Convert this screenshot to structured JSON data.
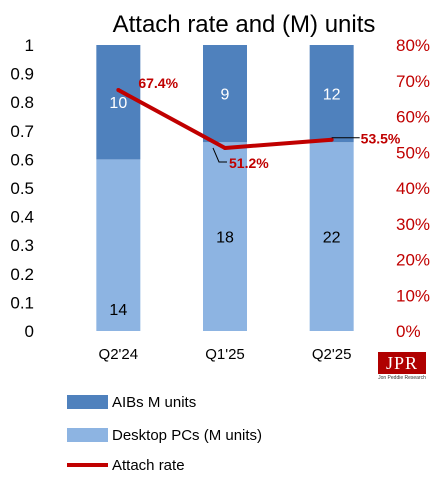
{
  "chart_data": {
    "type": "bar",
    "title": "Attach rate and (M) units",
    "categories": [
      "Q2'24",
      "Q1'25",
      "Q2'25"
    ],
    "series": [
      {
        "name": "Desktop PCs (M units)",
        "values": [
          14,
          18,
          22
        ],
        "labels": [
          "14",
          "18",
          "22"
        ],
        "color": "#8db4e2",
        "stacked": true
      },
      {
        "name": "AIBs M units",
        "values": [
          10,
          9,
          12
        ],
        "labels": [
          "10",
          "9",
          "12"
        ],
        "color": "#4f81bd",
        "stacked": true
      }
    ],
    "bar_fractions": {
      "Desktop PCs (M units)": [
        0.6,
        0.66,
        0.66
      ],
      "AIBs M units": [
        0.4,
        0.34,
        0.34
      ]
    },
    "line_series": {
      "name": "Attach rate",
      "values": [
        67.4,
        51.2,
        53.5
      ],
      "labels": [
        "67.4%",
        "51.2%",
        "53.5%"
      ],
      "color": "#c00000"
    },
    "left_axis": {
      "ylim": [
        0,
        1
      ],
      "ticks": [
        "0",
        "0.1",
        "0.2",
        "0.3",
        "0.4",
        "0.5",
        "0.6",
        "0.7",
        "0.8",
        "0.9",
        "1"
      ]
    },
    "right_axis": {
      "ylim": [
        0,
        80
      ],
      "ticks": [
        "0%",
        "10%",
        "20%",
        "30%",
        "40%",
        "50%",
        "60%",
        "70%",
        "80%"
      ],
      "color": "#c00000"
    },
    "legend": {
      "placement": "bottom",
      "items": [
        "AIBs M units",
        "Desktop PCs (M units)",
        "Attach rate"
      ]
    },
    "grid": false
  },
  "logo": {
    "text": "JPR",
    "subtext": "Jon Peddie Research"
  }
}
